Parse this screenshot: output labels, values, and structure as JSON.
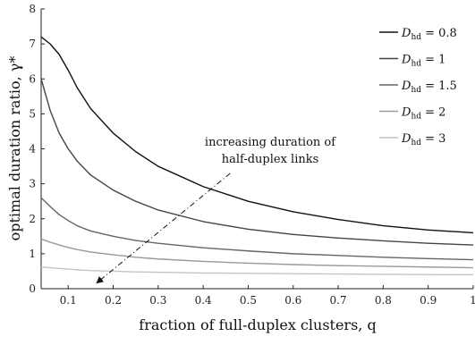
{
  "chart_data": {
    "type": "line",
    "xlabel": "fraction of full-duplex clusters, q",
    "ylabel": "optimal duration ratio, γ*",
    "xlim": [
      0.04,
      1.0
    ],
    "ylim": [
      0,
      8
    ],
    "x_ticks": [
      "0.1",
      "0.2",
      "0.3",
      "0.4",
      "0.5",
      "0.6",
      "0.7",
      "0.8",
      "0.9",
      "1"
    ],
    "y_ticks": [
      "0",
      "1",
      "2",
      "3",
      "4",
      "5",
      "6",
      "7",
      "8"
    ],
    "legend_position": "top-right",
    "grid": false,
    "x": [
      0.04,
      0.06,
      0.08,
      0.1,
      0.12,
      0.15,
      0.2,
      0.25,
      0.3,
      0.4,
      0.5,
      0.6,
      0.7,
      0.8,
      0.9,
      1.0
    ],
    "series": [
      {
        "name": "D_hd = 0.8",
        "legend_base": "D",
        "legend_sub": "hd",
        "legend_value": " = 0.8",
        "color": "#111111",
        "values": [
          7.2,
          7.0,
          6.7,
          6.25,
          5.75,
          5.15,
          4.45,
          3.92,
          3.5,
          2.92,
          2.5,
          2.2,
          1.98,
          1.8,
          1.68,
          1.6
        ]
      },
      {
        "name": "D_hd = 1",
        "legend_base": "D",
        "legend_sub": "hd",
        "legend_value": " = 1",
        "color": "#444444",
        "values": [
          6.0,
          5.1,
          4.45,
          4.0,
          3.65,
          3.25,
          2.82,
          2.5,
          2.25,
          1.92,
          1.7,
          1.55,
          1.45,
          1.37,
          1.3,
          1.25
        ]
      },
      {
        "name": "D_hd = 1.5",
        "legend_base": "D",
        "legend_sub": "hd",
        "legend_value": " = 1.5",
        "color": "#666666",
        "values": [
          2.6,
          2.35,
          2.12,
          1.95,
          1.8,
          1.65,
          1.5,
          1.38,
          1.3,
          1.17,
          1.08,
          1.0,
          0.95,
          0.9,
          0.86,
          0.83
        ]
      },
      {
        "name": "D_hd = 2",
        "legend_base": "D",
        "legend_sub": "hd",
        "legend_value": " = 2",
        "color": "#999999",
        "values": [
          1.42,
          1.33,
          1.25,
          1.18,
          1.12,
          1.05,
          0.97,
          0.9,
          0.85,
          0.78,
          0.73,
          0.69,
          0.66,
          0.64,
          0.62,
          0.6
        ]
      },
      {
        "name": "D_hd = 3",
        "legend_base": "D",
        "legend_sub": "hd",
        "legend_value": " = 3",
        "color": "#c4c4c4",
        "values": [
          0.62,
          0.6,
          0.58,
          0.56,
          0.54,
          0.52,
          0.5,
          0.48,
          0.47,
          0.45,
          0.44,
          0.43,
          0.42,
          0.41,
          0.405,
          0.4
        ]
      }
    ],
    "annotation": {
      "line1": "increasing duration of",
      "line2": "half-duplex links",
      "arrow_from": [
        0.46,
        3.3
      ],
      "arrow_to": [
        0.165,
        0.18
      ]
    }
  }
}
